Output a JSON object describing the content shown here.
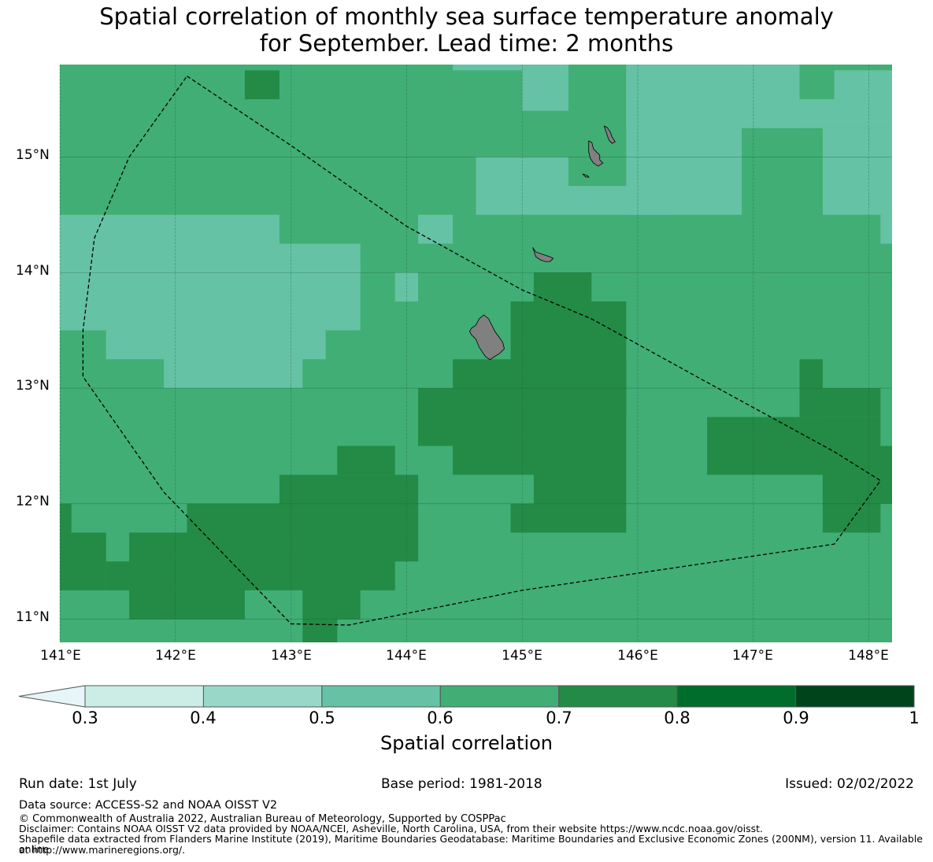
{
  "title_line1": "Spatial correlation of monthly sea surface temperature anomaly",
  "title_line2": "for September. Lead time: 2 months",
  "lat_labels": [
    "15°N",
    "14°N",
    "13°N",
    "12°N",
    "11°N"
  ],
  "lon_labels": [
    "141°E",
    "142°E",
    "143°E",
    "144°E",
    "145°E",
    "146°E",
    "147°E",
    "148°E"
  ],
  "colorbar": {
    "title": "Spatial correlation",
    "ticks": [
      "0.3",
      "0.4",
      "0.5",
      "0.6",
      "0.7",
      "0.8",
      "0.9",
      "1"
    ],
    "bins": [
      {
        "from": 0.3,
        "to": 0.4,
        "color": "#ccece6"
      },
      {
        "from": 0.4,
        "to": 0.5,
        "color": "#99d8c9"
      },
      {
        "from": 0.5,
        "to": 0.6,
        "color": "#66c2a4"
      },
      {
        "from": 0.6,
        "to": 0.7,
        "color": "#41ae76"
      },
      {
        "from": 0.7,
        "to": 0.8,
        "color": "#238b45"
      },
      {
        "from": 0.8,
        "to": 0.9,
        "color": "#006d2c"
      },
      {
        "from": 0.9,
        "to": 1.0,
        "color": "#00441b"
      }
    ],
    "under_color": "#e5f5f9"
  },
  "map_extent": {
    "lon_min": 141.0,
    "lon_max": 148.2,
    "lat_min": 10.8,
    "lat_max": 15.8
  },
  "grid_resolution_deg": 0.25,
  "regions": [
    {
      "level": 0.5,
      "lon": [
        141.0,
        142.9
      ],
      "lat": [
        13.75,
        14.5
      ]
    },
    {
      "level": 0.5,
      "lon": [
        141.0,
        143.6
      ],
      "lat": [
        13.5,
        14.25
      ]
    },
    {
      "level": 0.5,
      "lon": [
        141.4,
        143.3
      ],
      "lat": [
        13.25,
        13.75
      ]
    },
    {
      "level": 0.5,
      "lon": [
        141.9,
        143.1
      ],
      "lat": [
        13.0,
        13.5
      ]
    },
    {
      "level": 0.5,
      "lon": [
        145.0,
        145.4
      ],
      "lat": [
        15.4,
        15.8
      ]
    },
    {
      "level": 0.5,
      "lon": [
        144.4,
        145.4
      ],
      "lat": [
        15.75,
        15.8
      ]
    },
    {
      "level": 0.5,
      "lon": [
        145.9,
        146.9
      ],
      "lat": [
        14.5,
        15.8
      ]
    },
    {
      "level": 0.5,
      "lon": [
        145.9,
        147.4
      ],
      "lat": [
        15.25,
        15.8
      ]
    },
    {
      "level": 0.5,
      "lon": [
        144.6,
        145.4
      ],
      "lat": [
        14.5,
        15.0
      ]
    },
    {
      "level": 0.5,
      "lon": [
        145.4,
        146.3
      ],
      "lat": [
        14.5,
        14.75
      ]
    },
    {
      "level": 0.5,
      "lon": [
        147.7,
        148.2
      ],
      "lat": [
        15.5,
        15.75
      ]
    },
    {
      "level": 0.5,
      "lon": [
        147.1,
        148.2
      ],
      "lat": [
        15.25,
        15.5
      ]
    },
    {
      "level": 0.5,
      "lon": [
        147.6,
        148.2
      ],
      "lat": [
        14.5,
        15.25
      ]
    },
    {
      "level": 0.5,
      "lon": [
        148.1,
        148.2
      ],
      "lat": [
        14.25,
        14.5
      ]
    },
    {
      "level": 0.5,
      "lon": [
        144.1,
        144.4
      ],
      "lat": [
        14.25,
        14.5
      ]
    },
    {
      "level": 0.5,
      "lon": [
        143.9,
        144.1
      ],
      "lat": [
        13.75,
        14.0
      ]
    },
    {
      "level": 0.7,
      "lon": [
        142.6,
        142.9
      ],
      "lat": [
        15.5,
        15.75
      ]
    },
    {
      "level": 0.7,
      "lon": [
        145.1,
        145.6
      ],
      "lat": [
        13.75,
        14.0
      ]
    },
    {
      "level": 0.7,
      "lon": [
        144.9,
        145.9
      ],
      "lat": [
        13.0,
        13.75
      ]
    },
    {
      "level": 0.7,
      "lon": [
        144.4,
        145.9
      ],
      "lat": [
        12.75,
        13.25
      ]
    },
    {
      "level": 0.7,
      "lon": [
        144.1,
        145.9
      ],
      "lat": [
        12.5,
        13.0
      ]
    },
    {
      "level": 0.7,
      "lon": [
        144.4,
        145.6
      ],
      "lat": [
        12.25,
        12.5
      ]
    },
    {
      "level": 0.7,
      "lon": [
        145.1,
        145.9
      ],
      "lat": [
        12.0,
        12.5
      ]
    },
    {
      "level": 0.7,
      "lon": [
        144.9,
        145.9
      ],
      "lat": [
        11.75,
        12.0
      ]
    },
    {
      "level": 0.7,
      "lon": [
        146.6,
        148.1
      ],
      "lat": [
        12.25,
        12.75
      ]
    },
    {
      "level": 0.7,
      "lon": [
        147.4,
        147.6
      ],
      "lat": [
        12.75,
        13.25
      ]
    },
    {
      "level": 0.7,
      "lon": [
        147.4,
        148.1
      ],
      "lat": [
        12.75,
        13.0
      ]
    },
    {
      "level": 0.7,
      "lon": [
        147.6,
        148.2
      ],
      "lat": [
        12.0,
        12.5
      ]
    },
    {
      "level": 0.7,
      "lon": [
        147.6,
        148.1
      ],
      "lat": [
        11.75,
        12.25
      ]
    },
    {
      "level": 0.7,
      "lon": [
        142.9,
        144.1
      ],
      "lat": [
        12.0,
        12.25
      ]
    },
    {
      "level": 0.7,
      "lon": [
        143.4,
        143.9
      ],
      "lat": [
        12.25,
        12.5
      ]
    },
    {
      "level": 0.7,
      "lon": [
        142.1,
        144.1
      ],
      "lat": [
        11.5,
        12.0
      ]
    },
    {
      "level": 0.7,
      "lon": [
        141.0,
        141.4
      ],
      "lat": [
        11.25,
        11.75
      ]
    },
    {
      "level": 0.7,
      "lon": [
        141.0,
        141.1
      ],
      "lat": [
        11.75,
        12.0
      ]
    },
    {
      "level": 0.7,
      "lon": [
        141.4,
        142.1
      ],
      "lat": [
        11.25,
        11.5
      ]
    },
    {
      "level": 0.7,
      "lon": [
        141.6,
        143.9
      ],
      "lat": [
        11.25,
        11.75
      ]
    },
    {
      "level": 0.7,
      "lon": [
        141.6,
        142.6
      ],
      "lat": [
        11.0,
        11.25
      ]
    },
    {
      "level": 0.7,
      "lon": [
        143.1,
        143.6
      ],
      "lat": [
        11.0,
        11.25
      ]
    },
    {
      "level": 0.7,
      "lon": [
        143.1,
        143.4
      ],
      "lat": [
        10.8,
        11.0
      ]
    }
  ],
  "eez_boundary": [
    [
      142.1,
      15.7
    ],
    [
      143.0,
      15.1
    ],
    [
      144.0,
      14.4
    ],
    [
      145.0,
      13.85
    ],
    [
      145.6,
      13.6
    ],
    [
      146.6,
      13.05
    ],
    [
      147.7,
      12.45
    ],
    [
      148.1,
      12.2
    ],
    [
      147.7,
      11.65
    ],
    [
      145.0,
      11.25
    ],
    [
      143.5,
      10.95
    ],
    [
      143.0,
      10.96
    ],
    [
      141.9,
      12.1
    ],
    [
      141.2,
      13.1
    ],
    [
      141.2,
      13.5
    ],
    [
      141.3,
      14.3
    ],
    [
      141.6,
      15.0
    ],
    [
      142.1,
      15.7
    ]
  ],
  "island_centers": [
    [
      144.75,
      13.45
    ],
    [
      145.2,
      14.15
    ],
    [
      145.63,
      15.03
    ],
    [
      145.75,
      15.2
    ],
    [
      145.55,
      14.84
    ]
  ],
  "footer": {
    "run_date": "Run date: 1st July",
    "base_period": "Base period: 1981-2018",
    "issued": "Issued: 02/02/2022",
    "data_source": "Data source: ACCESS-S2 and NOAA OISST V2",
    "copyright": "© Commonwealth of Australia 2022, Australian Bureau of Meteorology, Supported by COSPPac",
    "disclaimer": "Disclaimer: Contains NOAA OISST V2 data provided by NOAA/NCEI, Asheville, North Carolina, USA, from their website https://www.ncdc.noaa.gov/oisst.",
    "shapefile_1": "Shapefile data extracted from Flanders Marine Institute (2019), Maritime Boundaries Geodatabase: Maritime Boundaries and Exclusive Economic Zones (200NM), version 11. Available online",
    "shapefile_2": "at http://www.marineregions.org/."
  }
}
